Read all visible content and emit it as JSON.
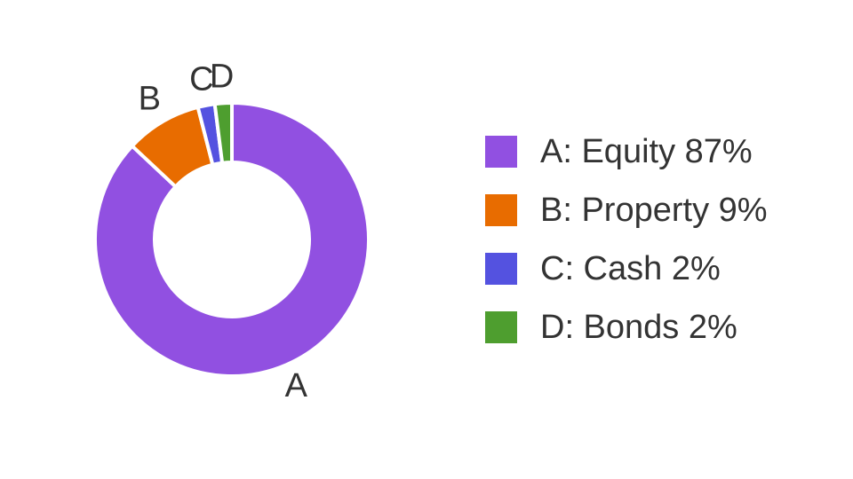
{
  "chart_data": {
    "type": "pie",
    "variant": "donut",
    "title": "",
    "slices": [
      {
        "label": "A",
        "legend": "A: Equity 87%",
        "name": "Equity",
        "value": 87,
        "color": "#9150E1"
      },
      {
        "label": "B",
        "legend": "B: Property 9%",
        "name": "Property",
        "value": 9,
        "color": "#E86C00"
      },
      {
        "label": "C",
        "legend": "C: Cash 2%",
        "name": "Cash",
        "value": 2,
        "color": "#5452E0"
      },
      {
        "label": "D",
        "legend": "D: Bonds 2%",
        "name": "Bonds",
        "value": 2,
        "color": "#4E9E2F"
      }
    ],
    "legend_position": "right"
  }
}
